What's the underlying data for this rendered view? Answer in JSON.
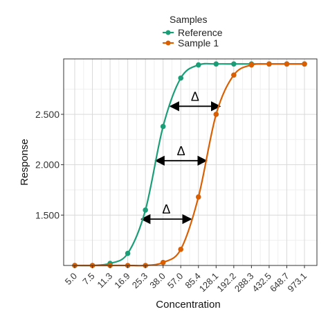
{
  "chart_data": {
    "type": "line",
    "title": "",
    "xlabel": "Concentration",
    "ylabel": "Response",
    "x_scale": "log",
    "categories": [
      "5.0",
      "7.5",
      "11.3",
      "16.9",
      "25.3",
      "38.0",
      "57.0",
      "85.4",
      "128.1",
      "192.2",
      "288.3",
      "432.5",
      "648.7",
      "973.1"
    ],
    "yticks": [
      "1.500",
      "2.000",
      "2.500"
    ],
    "ylim": [
      1.0,
      3.05
    ],
    "grid": true,
    "legend": {
      "title": "Samples",
      "placement": "top-center"
    },
    "series": [
      {
        "name": "Reference",
        "color": "#1b9e77",
        "marker": "circle",
        "values": [
          1.0,
          1.0,
          1.02,
          1.12,
          1.55,
          2.38,
          2.86,
          2.99,
          3.0,
          3.0,
          3.0,
          3.0,
          3.0,
          3.0
        ]
      },
      {
        "name": "Sample 1",
        "color": "#d95f02",
        "marker": "circle",
        "values": [
          1.0,
          1.0,
          1.0,
          1.0,
          1.0,
          1.03,
          1.16,
          1.68,
          2.5,
          2.89,
          2.99,
          3.0,
          3.0,
          3.0
        ]
      }
    ],
    "annotations": [
      {
        "label": "Δ",
        "y": 2.58,
        "x_from": "Reference",
        "x_to": "Sample 1"
      },
      {
        "label": "Δ",
        "y": 2.04,
        "x_from": "Reference",
        "x_to": "Sample 1"
      },
      {
        "label": "Δ",
        "y": 1.46,
        "x_from": "Reference",
        "x_to": "Sample 1"
      }
    ]
  }
}
